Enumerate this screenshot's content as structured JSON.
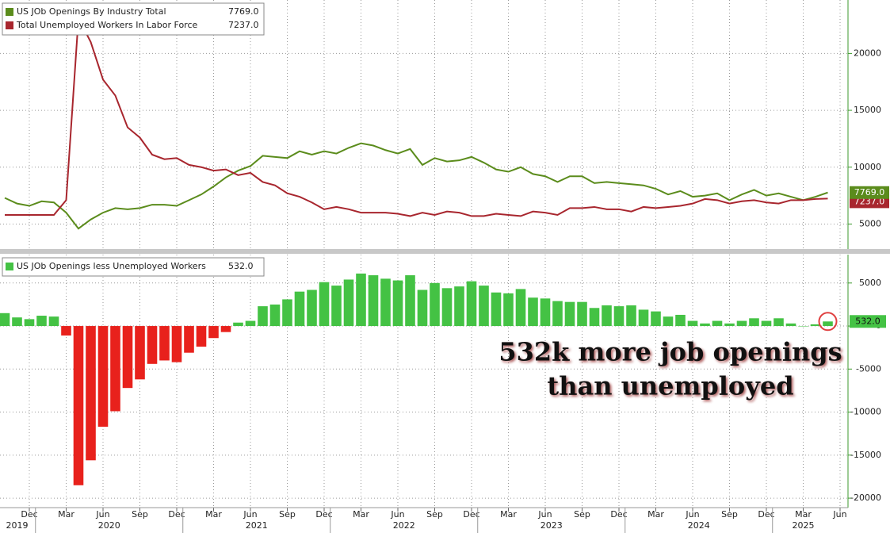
{
  "chart_data": [
    {
      "type": "line",
      "x": [
        "2019-10",
        "2019-11",
        "2019-12",
        "2020-01",
        "2020-02",
        "2020-03",
        "2020-04",
        "2020-05",
        "2020-06",
        "2020-07",
        "2020-08",
        "2020-09",
        "2020-10",
        "2020-11",
        "2020-12",
        "2021-01",
        "2021-02",
        "2021-03",
        "2021-04",
        "2021-05",
        "2021-06",
        "2021-07",
        "2021-08",
        "2021-09",
        "2021-10",
        "2021-11",
        "2021-12",
        "2022-01",
        "2022-02",
        "2022-03",
        "2022-04",
        "2022-05",
        "2022-06",
        "2022-07",
        "2022-08",
        "2022-09",
        "2022-10",
        "2022-11",
        "2022-12",
        "2023-01",
        "2023-02",
        "2023-03",
        "2023-04",
        "2023-05",
        "2023-06",
        "2023-07",
        "2023-08",
        "2023-09",
        "2023-10",
        "2023-11",
        "2023-12",
        "2024-01",
        "2024-02",
        "2024-03",
        "2024-04",
        "2024-05",
        "2024-06",
        "2024-07",
        "2024-08",
        "2024-09",
        "2024-10",
        "2024-11",
        "2024-12",
        "2025-01",
        "2025-02",
        "2025-03",
        "2025-04",
        "2025-05"
      ],
      "series": [
        {
          "name": "US JOb Openings By Industry Total",
          "color": "#5b8c1c",
          "last_label": "7769.0",
          "values": [
            7300,
            6800,
            6600,
            7000,
            6900,
            6000,
            4600,
            5400,
            6000,
            6400,
            6300,
            6400,
            6700,
            6700,
            6600,
            7100,
            7600,
            8300,
            9100,
            9700,
            10100,
            11000,
            10900,
            10800,
            11400,
            11100,
            11400,
            11200,
            11700,
            12100,
            11900,
            11500,
            11200,
            11600,
            10200,
            10800,
            10500,
            10600,
            10900,
            10400,
            9800,
            9600,
            10000,
            9400,
            9200,
            8700,
            9200,
            9200,
            8600,
            8700,
            8600,
            8500,
            8400,
            8100,
            7600,
            7900,
            7400,
            7500,
            7700,
            7100,
            7600,
            8000,
            7500,
            7700,
            7400,
            7100,
            7400,
            7769
          ]
        },
        {
          "name": "Total Unemployed Workers In Labor Force",
          "color": "#a8262e",
          "last_label": "7237.0",
          "values": [
            5800,
            5800,
            5800,
            5800,
            5800,
            7100,
            23100,
            21000,
            17700,
            16300,
            13500,
            12600,
            11100,
            10700,
            10800,
            10200,
            10000,
            9700,
            9800,
            9300,
            9500,
            8700,
            8400,
            7700,
            7400,
            6900,
            6300,
            6500,
            6300,
            6000,
            6000,
            6000,
            5900,
            5700,
            6000,
            5800,
            6100,
            6000,
            5700,
            5700,
            5900,
            5800,
            5700,
            6100,
            6000,
            5800,
            6400,
            6400,
            6500,
            6300,
            6300,
            6100,
            6500,
            6400,
            6500,
            6600,
            6800,
            7200,
            7100,
            6800,
            7000,
            7100,
            6900,
            6800,
            7100,
            7100,
            7200,
            7237
          ]
        }
      ],
      "ylim": [
        2800,
        24700
      ],
      "yticks": [
        5000,
        10000,
        15000,
        20000
      ],
      "xticks": [
        {
          "value": "2019-12",
          "label": "Dec"
        },
        {
          "value": "2020-03",
          "label": "Mar"
        },
        {
          "value": "2020-06",
          "label": "Jun"
        },
        {
          "value": "2020-09",
          "label": "Sep"
        },
        {
          "value": "2020-12",
          "label": "Dec"
        },
        {
          "value": "2021-03",
          "label": "Mar"
        },
        {
          "value": "2021-06",
          "label": "Jun"
        },
        {
          "value": "2021-09",
          "label": "Sep"
        },
        {
          "value": "2021-12",
          "label": "Dec"
        },
        {
          "value": "2022-03",
          "label": "Mar"
        },
        {
          "value": "2022-06",
          "label": "Jun"
        },
        {
          "value": "2022-09",
          "label": "Sep"
        },
        {
          "value": "2022-12",
          "label": "Dec"
        },
        {
          "value": "2023-03",
          "label": "Mar"
        },
        {
          "value": "2023-06",
          "label": "Jun"
        },
        {
          "value": "2023-09",
          "label": "Sep"
        },
        {
          "value": "2023-12",
          "label": "Dec"
        },
        {
          "value": "2024-03",
          "label": "Mar"
        },
        {
          "value": "2024-06",
          "label": "Jun"
        },
        {
          "value": "2024-09",
          "label": "Sep"
        },
        {
          "value": "2024-12",
          "label": "Dec"
        },
        {
          "value": "2025-03",
          "label": "Mar"
        },
        {
          "value": "2025-06",
          "label": "Jun"
        }
      ],
      "grid": true
    },
    {
      "type": "bar",
      "x": [
        "2019-10",
        "2019-11",
        "2019-12",
        "2020-01",
        "2020-02",
        "2020-03",
        "2020-04",
        "2020-05",
        "2020-06",
        "2020-07",
        "2020-08",
        "2020-09",
        "2020-10",
        "2020-11",
        "2020-12",
        "2021-01",
        "2021-02",
        "2021-03",
        "2021-04",
        "2021-05",
        "2021-06",
        "2021-07",
        "2021-08",
        "2021-09",
        "2021-10",
        "2021-11",
        "2021-12",
        "2022-01",
        "2022-02",
        "2022-03",
        "2022-04",
        "2022-05",
        "2022-06",
        "2022-07",
        "2022-08",
        "2022-09",
        "2022-10",
        "2022-11",
        "2022-12",
        "2023-01",
        "2023-02",
        "2023-03",
        "2023-04",
        "2023-05",
        "2023-06",
        "2023-07",
        "2023-08",
        "2023-09",
        "2023-10",
        "2023-11",
        "2023-12",
        "2024-01",
        "2024-02",
        "2024-03",
        "2024-04",
        "2024-05",
        "2024-06",
        "2024-07",
        "2024-08",
        "2024-09",
        "2024-10",
        "2024-11",
        "2024-12",
        "2025-01",
        "2025-02",
        "2025-03",
        "2025-04",
        "2025-05"
      ],
      "series": [
        {
          "name": "US JOb Openings less Unemployed Workers",
          "color": "#44c244",
          "negative_color": "#e8211c",
          "last_label": "532.0",
          "values": [
            1500,
            1000,
            800,
            1200,
            1100,
            -1100,
            -18500,
            -15600,
            -11700,
            -9900,
            -7200,
            -6200,
            -4400,
            -4000,
            -4200,
            -3100,
            -2400,
            -1400,
            -700,
            400,
            600,
            2300,
            2500,
            3100,
            4000,
            4200,
            5100,
            4700,
            5400,
            6100,
            5900,
            5500,
            5300,
            5900,
            4200,
            5000,
            4400,
            4600,
            5200,
            4700,
            3900,
            3800,
            4300,
            3300,
            3200,
            2900,
            2800,
            2800,
            2100,
            2400,
            2300,
            2400,
            1900,
            1700,
            1100,
            1300,
            600,
            300,
            600,
            300,
            600,
            900,
            600,
            900,
            300,
            0,
            200,
            532
          ]
        }
      ],
      "ylim": [
        -21100,
        8300
      ],
      "yticks": [
        5000,
        0,
        -5000,
        -10000,
        -15000,
        -20000
      ],
      "xticks": [
        {
          "value": "2019-12",
          "label": "Dec"
        },
        {
          "value": "2020-03",
          "label": "Mar"
        },
        {
          "value": "2020-06",
          "label": "Jun"
        },
        {
          "value": "2020-09",
          "label": "Sep"
        },
        {
          "value": "2020-12",
          "label": "Dec"
        },
        {
          "value": "2021-03",
          "label": "Mar"
        },
        {
          "value": "2021-06",
          "label": "Jun"
        },
        {
          "value": "2021-09",
          "label": "Sep"
        },
        {
          "value": "2021-12",
          "label": "Dec"
        },
        {
          "value": "2022-03",
          "label": "Mar"
        },
        {
          "value": "2022-06",
          "label": "Jun"
        },
        {
          "value": "2022-09",
          "label": "Sep"
        },
        {
          "value": "2022-12",
          "label": "Dec"
        },
        {
          "value": "2023-03",
          "label": "Mar"
        },
        {
          "value": "2023-06",
          "label": "Jun"
        },
        {
          "value": "2023-09",
          "label": "Sep"
        },
        {
          "value": "2023-12",
          "label": "Dec"
        },
        {
          "value": "2024-03",
          "label": "Mar"
        },
        {
          "value": "2024-06",
          "label": "Jun"
        },
        {
          "value": "2024-09",
          "label": "Sep"
        },
        {
          "value": "2024-12",
          "label": "Dec"
        },
        {
          "value": "2025-03",
          "label": "Mar"
        },
        {
          "value": "2025-06",
          "label": "Jun"
        }
      ],
      "years": [
        2019,
        2020,
        2021,
        2022,
        2023,
        2024,
        2025
      ],
      "annotation": [
        "532k more job openings",
        "than unemployed"
      ],
      "grid": true
    }
  ]
}
